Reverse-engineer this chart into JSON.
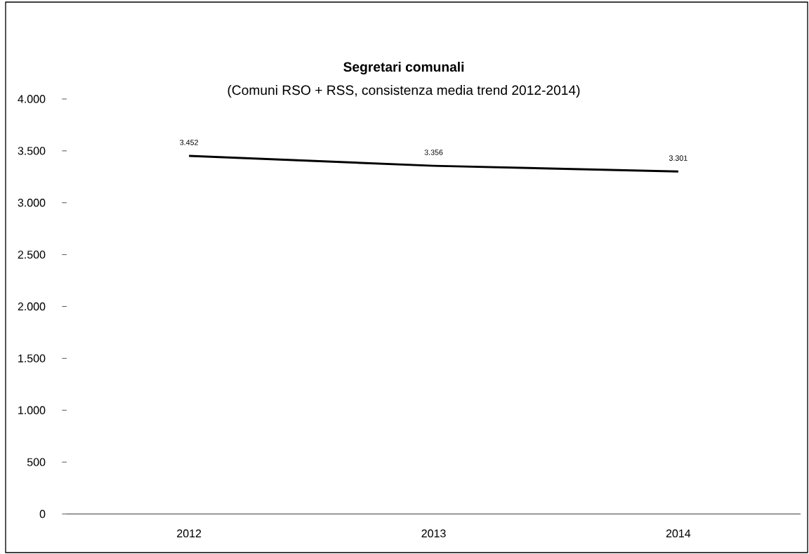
{
  "chart_data": {
    "type": "line",
    "title": "Segretari comunali",
    "subtitle": "(Comuni RSO + RSS, consistenza media trend 2012-2014)",
    "categories": [
      "2012",
      "2013",
      "2014"
    ],
    "series": [
      {
        "color": "#000000",
        "values": [
          3452,
          3356,
          3301
        ],
        "value_labels": [
          "3.452",
          "3.356",
          "3.301"
        ]
      }
    ],
    "ylim": [
      0,
      4000
    ],
    "yticks": [
      {
        "value": 0,
        "label": "0"
      },
      {
        "value": 500,
        "label": "500"
      },
      {
        "value": 1000,
        "label": "1.000"
      },
      {
        "value": 1500,
        "label": "1.500"
      },
      {
        "value": 2000,
        "label": "2.000"
      },
      {
        "value": 2500,
        "label": "2.500"
      },
      {
        "value": 3000,
        "label": "3.000"
      },
      {
        "value": 3500,
        "label": "3.500"
      },
      {
        "value": 4000,
        "label": "4.000"
      }
    ]
  }
}
